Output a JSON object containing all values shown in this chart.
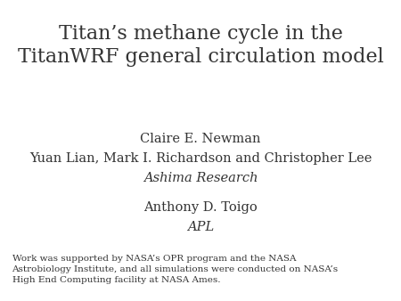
{
  "title_line1": "Titan’s methane cycle in the",
  "title_line2": "TitanWRF general circulation model",
  "title_fontsize": 16,
  "authors_line1": "Claire E. Newman",
  "authors_line2": "Yuan Lian, Mark I. Richardson and Christopher Lee",
  "authors_line3_italic": "Ashima Research",
  "author2_line1": "Anthony D. Toigo",
  "author2_line2_italic": "APL",
  "authors_fontsize": 10.5,
  "footnote": "Work was supported by NASA’s OPR program and the NASA\nAstrobiology Institute, and all simulations were conducted on NASA’s\nHigh End Computing facility at NASA Ames.",
  "footnote_fontsize": 7.5,
  "text_color": "#333333"
}
